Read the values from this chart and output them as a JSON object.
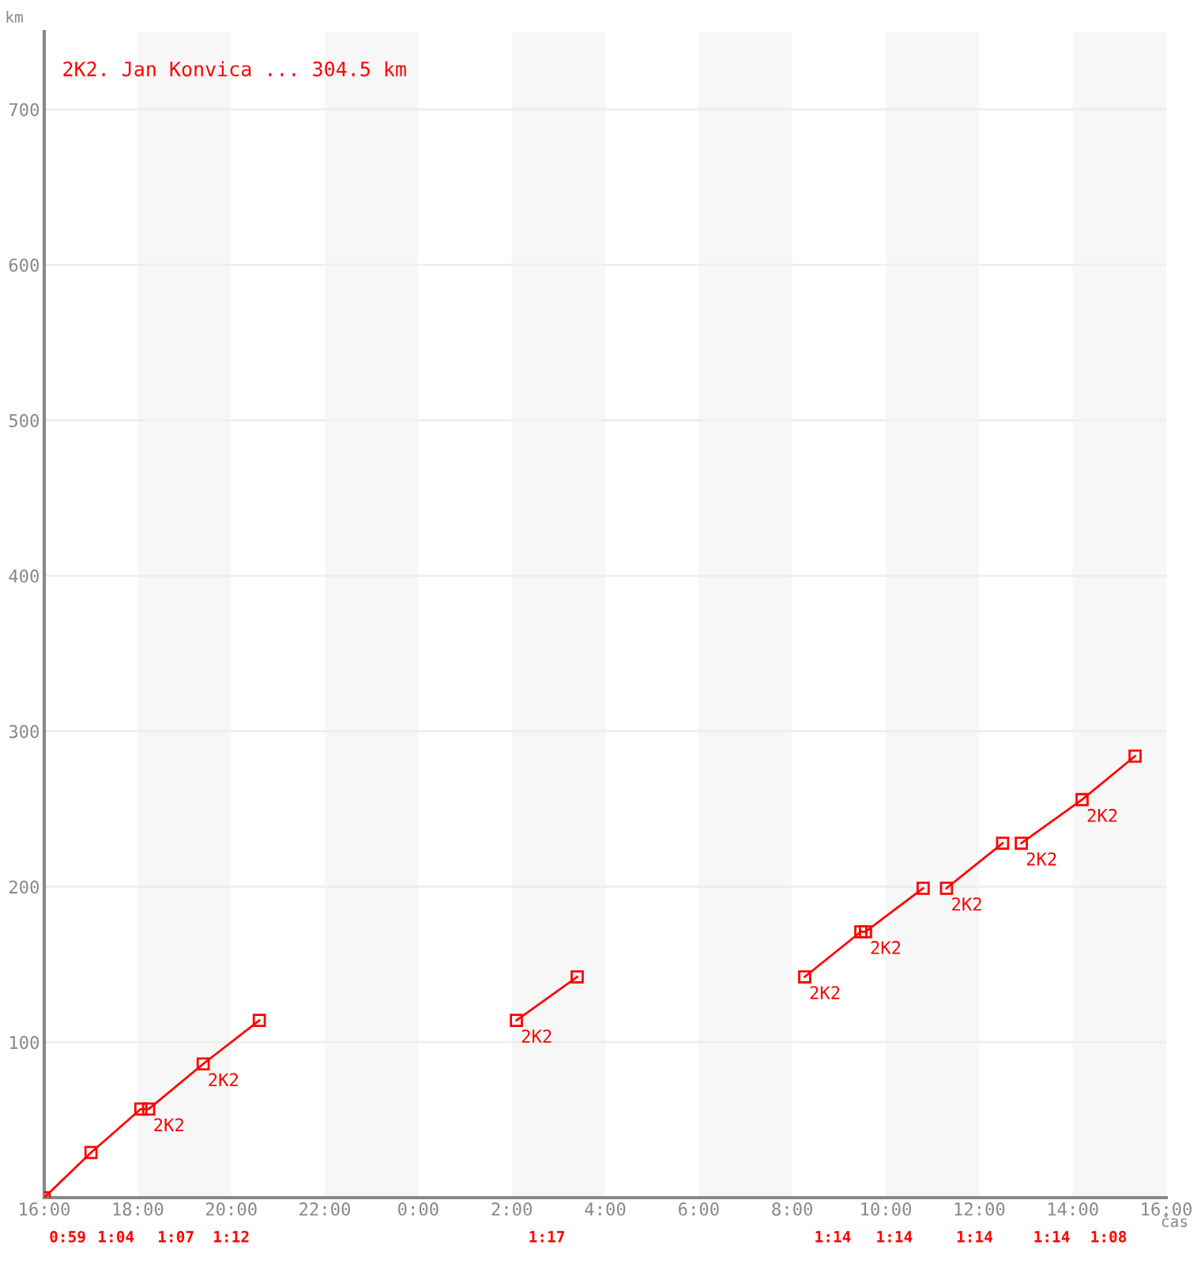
{
  "chart_data": {
    "type": "line",
    "xlabel": "čas",
    "ylabel": "km",
    "x": [
      "2000-01-01T16:00",
      "2000-01-01T17:00",
      "2000-01-01T18:04",
      "2000-01-01T18:14",
      "2000-01-01T19:24",
      "2000-01-01T20:36",
      null,
      "2000-01-02T02:06",
      "2000-01-02T03:24",
      null,
      "2000-01-02T08:16",
      "2000-01-02T09:28",
      "2000-01-02T09:34",
      "2000-01-02T10:48",
      null,
      "2000-01-02T11:18",
      "2000-01-02T12:30",
      null,
      "2000-01-02T12:54",
      "2000-01-02T14:12",
      "2000-01-02T15:20"
    ],
    "series": [
      {
        "name": "2K2. Jan Konvica ... 304.5 km",
        "color": "#ff0000",
        "values": [
          0,
          29,
          57,
          57,
          86,
          114,
          null,
          114,
          142,
          null,
          142,
          171,
          171,
          199,
          null,
          199,
          228,
          null,
          228,
          256,
          284
        ]
      }
    ],
    "xlim": [
      "2000-01-01T16:00",
      "2000-01-02T16:00"
    ],
    "xticks": [
      {
        "value": "2000-01-01T16:00",
        "label": "16:00"
      },
      {
        "value": "2000-01-01T18:00",
        "label": "18:00"
      },
      {
        "value": "2000-01-01T20:00",
        "label": "20:00"
      },
      {
        "value": "2000-01-01T22:00",
        "label": "22:00"
      },
      {
        "value": "2000-01-02T00:00",
        "label": "0:00"
      },
      {
        "value": "2000-01-02T02:00",
        "label": "2:00"
      },
      {
        "value": "2000-01-02T04:00",
        "label": "4:00"
      },
      {
        "value": "2000-01-02T06:00",
        "label": "6:00"
      },
      {
        "value": "2000-01-02T08:00",
        "label": "8:00"
      },
      {
        "value": "2000-01-02T10:00",
        "label": "10:00"
      },
      {
        "value": "2000-01-02T12:00",
        "label": "12:00"
      },
      {
        "value": "2000-01-02T14:00",
        "label": "14:00"
      },
      {
        "value": "2000-01-02T16:00",
        "label": "16:00"
      }
    ],
    "ylim": [
      0,
      750
    ],
    "yticks": [
      {
        "value": 0,
        "label": null
      },
      100,
      200,
      300,
      400,
      500,
      600,
      700
    ],
    "grid": "y",
    "legend": "top left",
    "marker": "square",
    "line_style": "solid",
    "bands": [
      {
        "axis": "x",
        "from": "2000-01-01T18:00",
        "to": "2000-01-01T20:00",
        "color": "#f7f7f7"
      },
      {
        "axis": "x",
        "from": "2000-01-01T22:00",
        "to": "2000-01-02T00:00",
        "color": "#f7f7f7"
      },
      {
        "axis": "x",
        "from": "2000-01-02T02:00",
        "to": "2000-01-02T04:00",
        "color": "#f7f7f7"
      },
      {
        "axis": "x",
        "from": "2000-01-02T06:00",
        "to": "2000-01-02T08:00",
        "color": "#f7f7f7"
      },
      {
        "axis": "x",
        "from": "2000-01-02T10:00",
        "to": "2000-01-02T12:00",
        "color": "#f7f7f7"
      },
      {
        "axis": "x",
        "from": "2000-01-02T14:00",
        "to": "2000-01-02T16:00",
        "color": "#f7f7f7"
      }
    ],
    "annotations": [
      {
        "text": "2K2",
        "x": "2000-01-01T18:14",
        "y": 57
      },
      {
        "text": "2K2",
        "x": "2000-01-01T19:24",
        "y": 86
      },
      {
        "text": "2K2",
        "x": "2000-01-02T02:06",
        "y": 114
      },
      {
        "text": "2K2",
        "x": "2000-01-02T08:16",
        "y": 142
      },
      {
        "text": "2K2",
        "x": "2000-01-02T09:34",
        "y": 171
      },
      {
        "text": "2K2",
        "x": "2000-01-02T11:18",
        "y": 199
      },
      {
        "text": "2K2",
        "x": "2000-01-02T12:54",
        "y": 228
      },
      {
        "text": "2K2",
        "x": "2000-01-02T14:12",
        "y": 256
      },
      "0:59",
      "1:04",
      "1:07",
      "1:12",
      "1:17",
      "1:14",
      "1:14",
      "1:14",
      "1:14",
      "1:08"
    ]
  }
}
